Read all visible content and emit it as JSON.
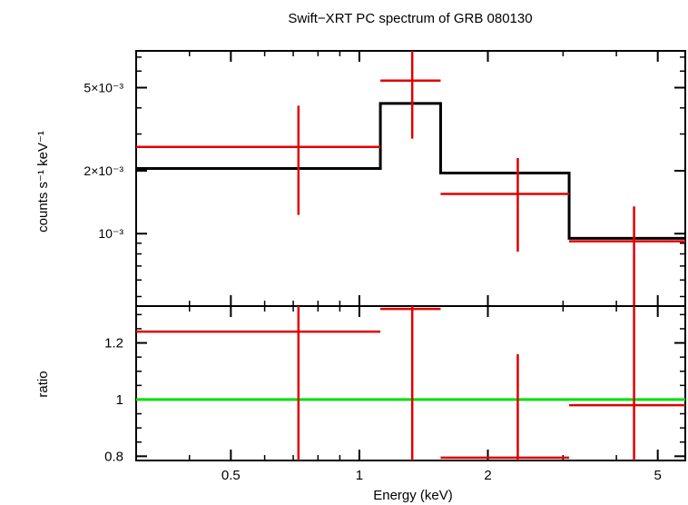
{
  "chart_data": [
    {
      "type": "scatter",
      "title": "Swift−XRT PC spectrum of GRB 080130",
      "ylabel": "counts s⁻¹ keV⁻¹",
      "x_scale": "log",
      "y_scale": "log",
      "xlim": [
        0.3,
        5.8
      ],
      "ylim": [
        0.00045,
        0.0075
      ],
      "grid": false,
      "y_ticks": [
        {
          "value": 0.005,
          "label": "5×10⁻³"
        },
        {
          "value": 0.002,
          "label": "2×10⁻³"
        },
        {
          "value": 0.001,
          "label": "10⁻³"
        }
      ],
      "colors": {
        "data": "#e00000",
        "model": "#000000"
      },
      "data_points": [
        {
          "x": 0.72,
          "x_lo": 0.3,
          "x_hi": 1.12,
          "y": 0.0026,
          "y_lo": 0.00123,
          "y_hi": 0.0041
        },
        {
          "x": 1.33,
          "x_lo": 1.12,
          "x_hi": 1.55,
          "y": 0.0054,
          "y_lo": 0.00285,
          "y_hi": 0.0075
        },
        {
          "x": 2.35,
          "x_lo": 1.55,
          "x_hi": 3.1,
          "y": 0.00155,
          "y_lo": 0.00082,
          "y_hi": 0.0023
        },
        {
          "x": 4.4,
          "x_lo": 3.1,
          "x_hi": 5.8,
          "y": 0.00092,
          "y_lo": 0.00045,
          "y_hi": 0.00135
        }
      ],
      "model_steps": [
        {
          "x_lo": 0.3,
          "x_hi": 1.12,
          "y": 0.00205
        },
        {
          "x_lo": 1.12,
          "x_hi": 1.55,
          "y": 0.0042
        },
        {
          "x_lo": 1.55,
          "x_hi": 3.1,
          "y": 0.00195
        },
        {
          "x_lo": 3.1,
          "x_hi": 5.8,
          "y": 0.00095
        }
      ]
    },
    {
      "type": "scatter",
      "xlabel": "Energy (keV)",
      "ylabel": "ratio",
      "x_scale": "log",
      "xlim": [
        0.3,
        5.8
      ],
      "ylim": [
        0.785,
        1.33
      ],
      "grid": false,
      "x_ticks": [
        {
          "value": 0.5,
          "label": "0.5"
        },
        {
          "value": 1,
          "label": "1"
        },
        {
          "value": 2,
          "label": "2"
        },
        {
          "value": 5,
          "label": "5"
        }
      ],
      "y_ticks": [
        {
          "value": 1.2,
          "label": "1.2"
        },
        {
          "value": 1,
          "label": "1"
        },
        {
          "value": 0.8,
          "label": "0.8"
        }
      ],
      "reference_line": 1,
      "colors": {
        "data": "#e00000",
        "reference": "#00e000"
      },
      "data_points": [
        {
          "x": 0.72,
          "x_lo": 0.3,
          "x_hi": 1.12,
          "y": 1.24,
          "y_lo": 0.785,
          "y_hi": 1.33
        },
        {
          "x": 1.33,
          "x_lo": 1.12,
          "x_hi": 1.55,
          "y": 1.32,
          "y_lo": 0.785,
          "y_hi": 1.33
        },
        {
          "x": 2.35,
          "x_lo": 1.55,
          "x_hi": 3.1,
          "y": 0.795,
          "y_lo": 0.785,
          "y_hi": 1.16
        },
        {
          "x": 4.4,
          "x_lo": 3.1,
          "x_hi": 5.8,
          "y": 0.98,
          "y_lo": 0.785,
          "y_hi": 1.33
        }
      ]
    }
  ]
}
